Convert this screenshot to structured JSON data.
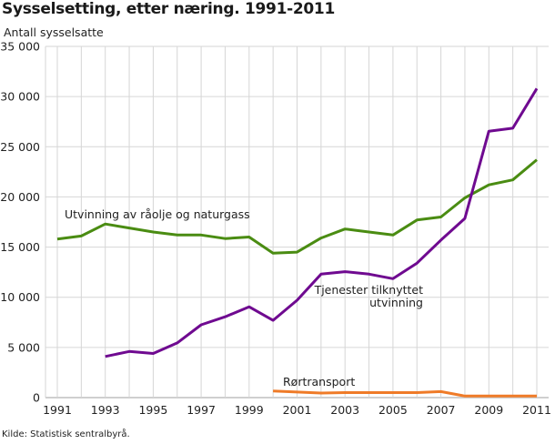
{
  "title": "Sysselsetting, etter næring. 1991-2011",
  "y_axis_title": "Antall sysselsatte",
  "source": "Kilde: Statistisk sentralbyrå.",
  "colors": {
    "utvinning": "#4a8c12",
    "tjenester": "#6f0a90",
    "rortransport": "#ef7b28",
    "grid": "#d6d6d6"
  },
  "labels": {
    "utvinning": "Utvinning av råolje og naturgass",
    "tjenester_line1": "Tjenester tilknyttet",
    "tjenester_line2": "utvinning",
    "rortransport": "Rørtransport"
  },
  "chart_data": {
    "type": "line",
    "title": "Sysselsetting, etter næring. 1991-2011",
    "xlabel": "",
    "ylabel": "Antall sysselsatte",
    "ylim": [
      0,
      35000
    ],
    "yticks": [
      0,
      5000,
      10000,
      15000,
      20000,
      25000,
      30000,
      35000
    ],
    "ytick_labels": [
      "0",
      "5 000",
      "10 000",
      "15 000",
      "20 000",
      "25 000",
      "30 000",
      "35 000"
    ],
    "x": [
      1991,
      1992,
      1993,
      1994,
      1995,
      1996,
      1997,
      1998,
      1999,
      2000,
      2001,
      2002,
      2003,
      2004,
      2005,
      2006,
      2007,
      2008,
      2009,
      2010,
      2011
    ],
    "xtick_labels": [
      "1991",
      "1993",
      "1995",
      "1997",
      "1999",
      "2001",
      "2003",
      "2005",
      "2007",
      "2009",
      "2011"
    ],
    "grid": true,
    "legend": "inline labels",
    "series": [
      {
        "name": "Utvinning av råolje og naturgass",
        "values": [
          15800,
          16100,
          17300,
          16900,
          16500,
          16200,
          16200,
          15850,
          16000,
          14400,
          14500,
          15900,
          16800,
          16500,
          16200,
          17700,
          18000,
          19900,
          21200,
          21700,
          23700
        ]
      },
      {
        "name": "Tjenester tilknyttet utvinning",
        "values": [
          null,
          null,
          4100,
          4600,
          4400,
          5450,
          7250,
          8050,
          9050,
          7700,
          9700,
          12300,
          12550,
          12300,
          11850,
          13400,
          15700,
          17850,
          26550,
          26850,
          30800
        ]
      },
      {
        "name": "Rørtransport",
        "values": [
          null,
          null,
          null,
          null,
          null,
          null,
          null,
          null,
          null,
          650,
          550,
          450,
          500,
          500,
          500,
          500,
          600,
          150,
          150,
          150,
          150
        ]
      }
    ]
  }
}
